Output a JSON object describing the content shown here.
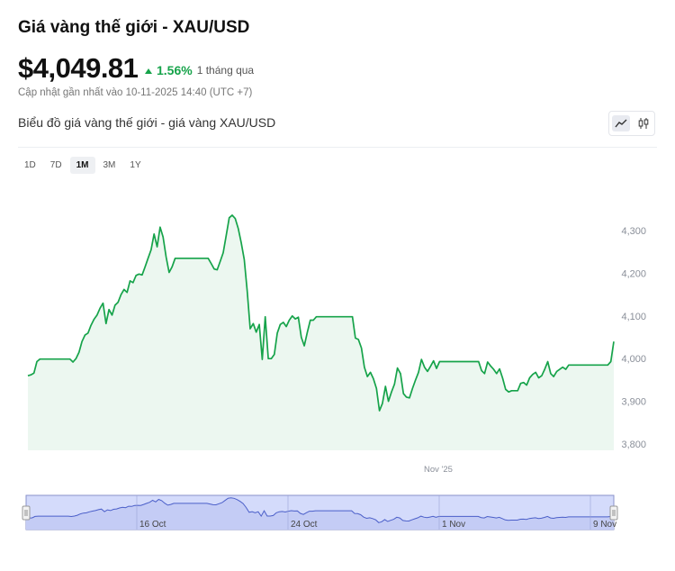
{
  "header": {
    "title": "Giá vàng thế giới - XAU/USD",
    "price": "$4,049.81",
    "change_pct": "1.56%",
    "change_period": "1 tháng qua",
    "updated": "Cập nhật gần nhất vào 10-11-2025 14:40 (UTC +7)",
    "subtitle": "Biểu đồ giá vàng thế giới - giá vàng XAU/USD"
  },
  "ranges": [
    "1D",
    "7D",
    "1M",
    "3M",
    "1Y"
  ],
  "active_range": "1M",
  "colors": {
    "line": "#16a34a",
    "area": "#ecf7f0",
    "navigator_fill": "#d4dbfb",
    "navigator_border": "#8891c9"
  },
  "chart_data": {
    "type": "area",
    "title": "",
    "xlabel": "",
    "ylabel": "",
    "ylim": [
      3800,
      4300
    ],
    "y_ticks": [
      "3,800",
      "3,900",
      "4,000",
      "4,100",
      "4,200",
      "4,300"
    ],
    "x_tick_labels": [
      "Nov '25"
    ],
    "navigator_labels": [
      "16 Oct",
      "24 Oct",
      "1 Nov",
      "9 Nov"
    ],
    "grid": false,
    "series": [
      {
        "values": [
          3960,
          3962,
          3966,
          3993,
          3999,
          3999,
          3999,
          3999,
          3999,
          3999,
          3999,
          3999,
          3999,
          3999,
          3999,
          3992,
          4000,
          4015,
          4040,
          4055,
          4060,
          4078,
          4092,
          4102,
          4118,
          4130,
          4082,
          4115,
          4102,
          4125,
          4132,
          4150,
          4162,
          4155,
          4182,
          4178,
          4195,
          4198,
          4196,
          4215,
          4235,
          4255,
          4292,
          4262,
          4308,
          4285,
          4238,
          4202,
          4215,
          4235,
          4235,
          4235,
          4235,
          4235,
          4235,
          4235,
          4235,
          4235,
          4235,
          4235,
          4235,
          4223,
          4210,
          4208,
          4228,
          4248,
          4288,
          4330,
          4336,
          4328,
          4305,
          4272,
          4232,
          4158,
          4070,
          4082,
          4062,
          4080,
          3998,
          4098,
          4000,
          4000,
          4010,
          4060,
          4080,
          4085,
          4075,
          4090,
          4100,
          4093,
          4097,
          4050,
          4030,
          4062,
          4090,
          4090,
          4098,
          4098,
          4098,
          4098,
          4098,
          4098,
          4098,
          4098,
          4098,
          4098,
          4098,
          4098,
          4098,
          4048,
          4045,
          4025,
          3980,
          3958,
          3968,
          3953,
          3930,
          3878,
          3895,
          3935,
          3900,
          3922,
          3940,
          3978,
          3965,
          3918,
          3910,
          3908,
          3930,
          3950,
          3968,
          3998,
          3980,
          3970,
          3982,
          3995,
          3977,
          3993,
          3993,
          3993,
          3993,
          3993,
          3993,
          3993,
          3993,
          3993,
          3993,
          3993,
          3993,
          3993,
          3993,
          3972,
          3965,
          3992,
          3983,
          3975,
          3965,
          3976,
          3954,
          3928,
          3922,
          3925,
          3925,
          3925,
          3942,
          3944,
          3938,
          3955,
          3963,
          3968,
          3955,
          3960,
          3975,
          3993,
          3965,
          3958,
          3970,
          3975,
          3980,
          3975,
          3985,
          3985,
          3985,
          3985,
          3985,
          3985,
          3985,
          3985,
          3985,
          3985,
          3985,
          3985,
          3985,
          3985,
          3993,
          4040
        ]
      }
    ]
  }
}
